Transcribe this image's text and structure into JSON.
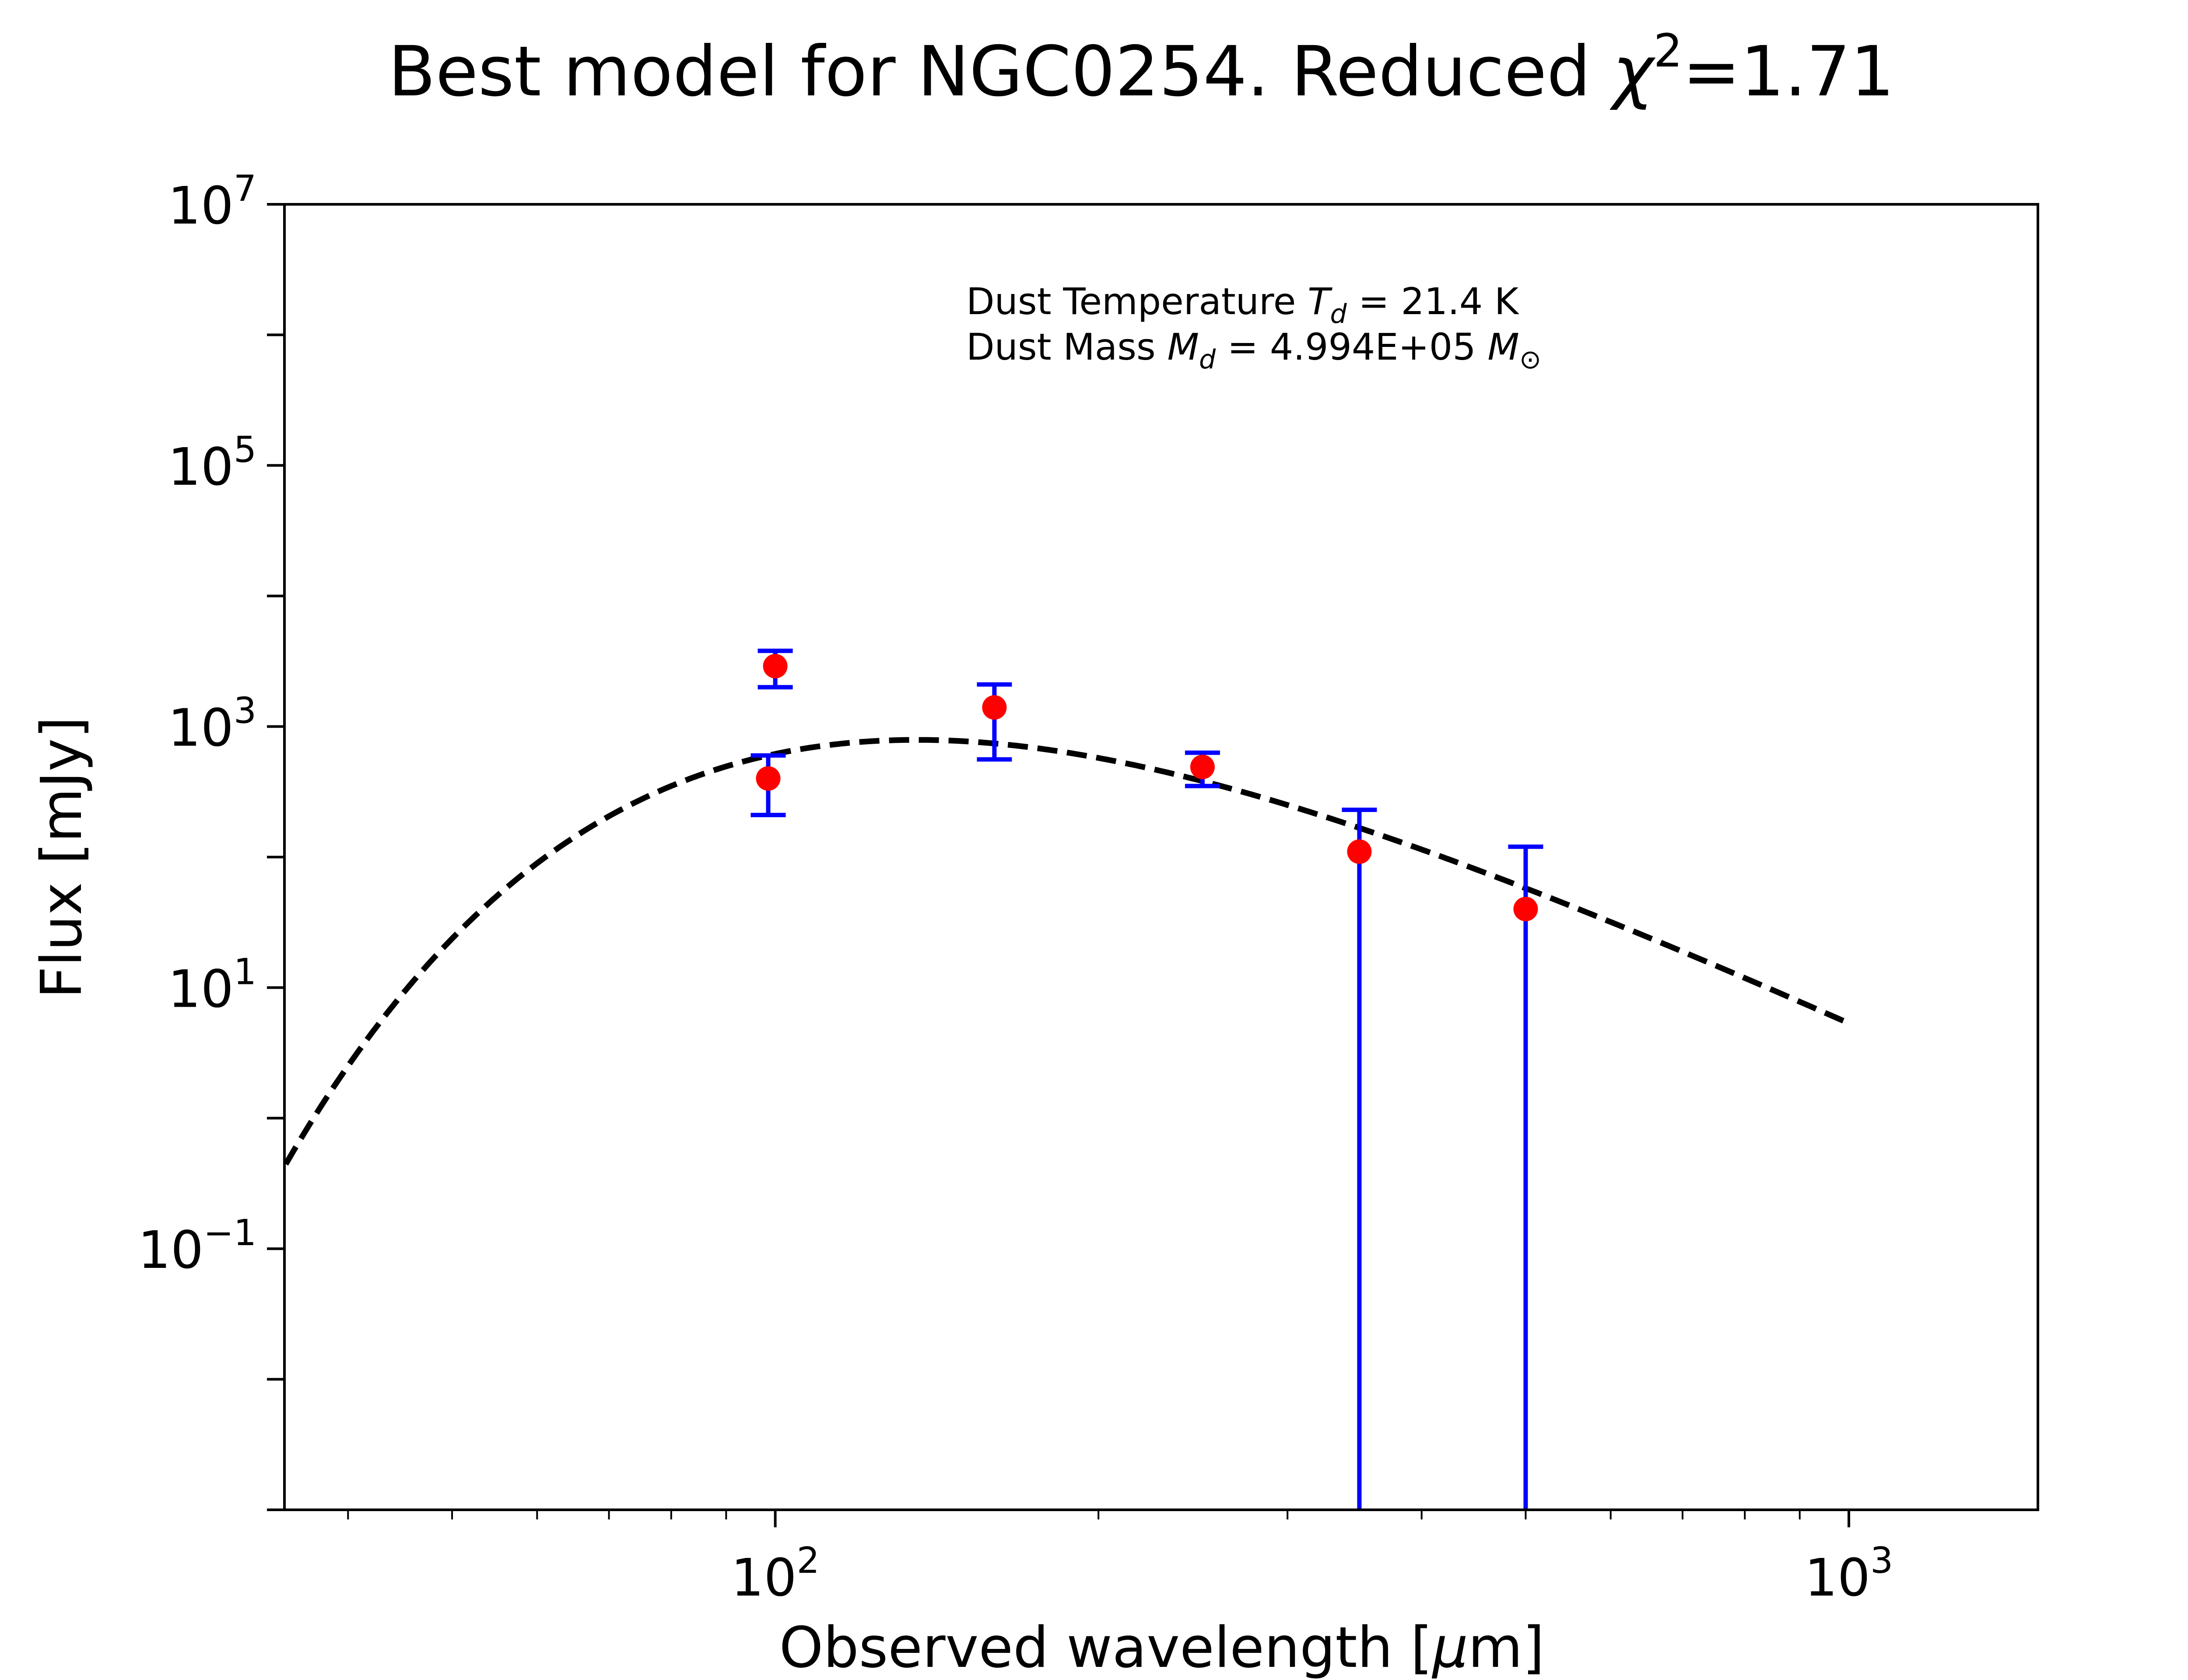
{
  "chart_data": {
    "type": "scatter",
    "title": {
      "prefix": "Best model for NGC0254. Reduced ",
      "chi_symbol": "χ",
      "chi_power": "2",
      "suffix": "=1.71"
    },
    "xlabel": {
      "main": "Observed wavelength [",
      "mu": "μ",
      "unit": "m]"
    },
    "ylabel": "Flux [mJy]",
    "x_scale": "log",
    "y_scale": "log",
    "xlim": [
      34.9,
      1500
    ],
    "ylim": [
      0.001,
      10000000
    ],
    "grid": false,
    "x_ticks": [
      {
        "value": 100,
        "base": "10",
        "exp": "2"
      },
      {
        "value": 1000,
        "base": "10",
        "exp": "3"
      }
    ],
    "y_ticks": [
      {
        "value": 0.1,
        "base": "10",
        "exp": "−1"
      },
      {
        "value": 10,
        "base": "10",
        "exp": "1"
      },
      {
        "value": 1000,
        "base": "10",
        "exp": "3"
      },
      {
        "value": 100000,
        "base": "10",
        "exp": "5"
      },
      {
        "value": 10000000,
        "base": "10",
        "exp": "7"
      }
    ],
    "annotations": {
      "temperature": {
        "prefix": "Dust Temperature ",
        "symbol": "T",
        "sub": "d",
        "suffix": " = 21.4 K"
      },
      "mass": {
        "prefix": "Dust Mass ",
        "symbol": "M",
        "sub": "d",
        "middle": " = 4.994E+05 ",
        "unit_symbol": "M",
        "unit_sub": "⊙"
      }
    },
    "model": {
      "style": "dashed",
      "color": "#000000",
      "temperature_K": 21.4,
      "peak_flux_mJy": 790,
      "x_range": [
        35,
        1000
      ]
    },
    "observations": [
      {
        "x": 98.5,
        "y": 400,
        "yerr_low": 210,
        "yerr_high": 600
      },
      {
        "x": 100,
        "y": 2900,
        "yerr_low": 2000,
        "yerr_high": 3800
      },
      {
        "x": 160,
        "y": 1400,
        "yerr_low": 560,
        "yerr_high": 2100
      },
      {
        "x": 250,
        "y": 490,
        "yerr_low": 350,
        "yerr_high": 630
      },
      {
        "x": 350,
        "y": 110,
        "yerr_low": 0.001,
        "yerr_high": 230
      },
      {
        "x": 500,
        "y": 40,
        "yerr_low": 0.001,
        "yerr_high": 120
      }
    ],
    "colors": {
      "points": "#ff0000",
      "errorbars": "#0000ff",
      "model": "#000000",
      "axes": "#000000"
    }
  }
}
